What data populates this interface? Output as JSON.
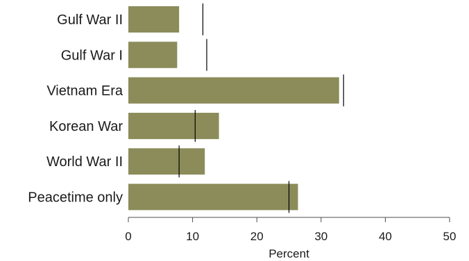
{
  "chart_data": {
    "type": "bar",
    "orientation": "horizontal",
    "categories": [
      "Gulf War II",
      "Gulf War I",
      "Vietnam Era",
      "Korean War",
      "World War II",
      "Peacetime only"
    ],
    "values": [
      7.9,
      7.6,
      32.8,
      14.1,
      11.9,
      26.4
    ],
    "reference_values": [
      11.6,
      12.2,
      33.5,
      10.4,
      7.9,
      25.0
    ],
    "xlabel": "Percent",
    "ylabel": "",
    "xlim": [
      0,
      50
    ],
    "xticks": [
      "0",
      "10",
      "20",
      "30",
      "40",
      "50"
    ],
    "grid": false,
    "legend": "none",
    "colors": {
      "bar": "#8b8c5a",
      "reference_line": "#000000",
      "axis": "#4d4d4d"
    }
  }
}
